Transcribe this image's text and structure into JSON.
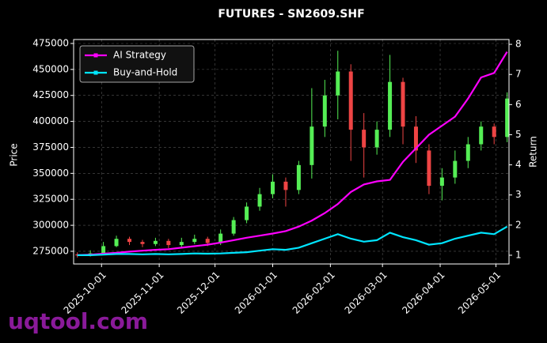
{
  "chart_data": {
    "type": "candlestick",
    "title": "FUTURES - SN2609.SHF",
    "ylabel": "Price",
    "y2label": "Return",
    "watermark": "uqtool.com",
    "x": [
      "2025-09-18",
      "2025-09-25",
      "2025-10-02",
      "2025-10-09",
      "2025-10-16",
      "2025-10-23",
      "2025-10-30",
      "2025-11-06",
      "2025-11-13",
      "2025-11-20",
      "2025-11-27",
      "2025-12-04",
      "2025-12-11",
      "2025-12-18",
      "2025-12-25",
      "2026-01-01",
      "2026-01-08",
      "2026-01-15",
      "2026-01-22",
      "2026-01-29",
      "2026-02-05",
      "2026-02-12",
      "2026-02-19",
      "2026-02-26",
      "2026-03-05",
      "2026-03-12",
      "2026-03-19",
      "2026-03-26",
      "2026-04-02",
      "2026-04-09",
      "2026-04-16",
      "2026-04-23",
      "2026-04-30",
      "2026-05-07"
    ],
    "open": [
      272000,
      271000,
      273000,
      280000,
      287000,
      284000,
      282000,
      285000,
      281000,
      284000,
      287000,
      283000,
      292000,
      305000,
      318000,
      330000,
      342000,
      334000,
      358000,
      395000,
      425000,
      448000,
      392000,
      375000,
      392000,
      438000,
      395000,
      372000,
      338000,
      346000,
      362000,
      378000,
      395000,
      385000
    ],
    "high": [
      274000,
      276000,
      284000,
      290000,
      289000,
      286000,
      288000,
      287000,
      288000,
      291000,
      289000,
      296000,
      308000,
      322000,
      336000,
      349000,
      346000,
      362000,
      432000,
      440000,
      468000,
      455000,
      408000,
      400000,
      464000,
      442000,
      405000,
      378000,
      355000,
      372000,
      385000,
      400000,
      398000,
      428000
    ],
    "low": [
      269000,
      270000,
      272000,
      279000,
      281000,
      279000,
      280000,
      278000,
      279000,
      282000,
      280000,
      281000,
      290000,
      302000,
      314000,
      326000,
      318000,
      330000,
      345000,
      385000,
      402000,
      362000,
      346000,
      368000,
      385000,
      378000,
      360000,
      330000,
      324000,
      340000,
      355000,
      372000,
      378000,
      380000
    ],
    "close": [
      271000,
      273000,
      280000,
      287000,
      284000,
      282000,
      285000,
      281000,
      284000,
      287000,
      283000,
      292000,
      305000,
      318000,
      330000,
      342000,
      334000,
      358000,
      395000,
      425000,
      448000,
      392000,
      375000,
      392000,
      438000,
      395000,
      372000,
      338000,
      346000,
      362000,
      378000,
      395000,
      385000,
      422000
    ],
    "up_color": "#55ee55",
    "down_color": "#ee4444",
    "series": [
      {
        "name": "AI Strategy",
        "color": "#ff00ff",
        "axis": "y2",
        "values": [
          1.0,
          1.02,
          1.05,
          1.08,
          1.12,
          1.15,
          1.18,
          1.2,
          1.25,
          1.3,
          1.35,
          1.42,
          1.5,
          1.58,
          1.65,
          1.72,
          1.8,
          1.95,
          2.15,
          2.4,
          2.7,
          3.1,
          3.35,
          3.45,
          3.5,
          4.1,
          4.55,
          5.0,
          5.3,
          5.6,
          6.2,
          6.9,
          7.05,
          7.75
        ]
      },
      {
        "name": "Buy-and-Hold",
        "color": "#00e5ff",
        "axis": "y2",
        "values": [
          1.0,
          1.0,
          1.02,
          1.04,
          1.04,
          1.03,
          1.04,
          1.03,
          1.04,
          1.06,
          1.05,
          1.06,
          1.08,
          1.1,
          1.15,
          1.2,
          1.18,
          1.25,
          1.4,
          1.55,
          1.7,
          1.55,
          1.45,
          1.5,
          1.75,
          1.6,
          1.5,
          1.35,
          1.4,
          1.55,
          1.65,
          1.75,
          1.7,
          1.95
        ]
      }
    ],
    "xlim": [
      "2025-09-16",
      "2026-05-08"
    ],
    "xticks": [
      "2025-10-01",
      "2025-11-01",
      "2025-12-01",
      "2026-01-01",
      "2026-02-01",
      "2026-03-01",
      "2026-04-01",
      "2026-05-01"
    ],
    "ylim": [
      262800,
      478800
    ],
    "yticks": [
      275000,
      300000,
      325000,
      350000,
      375000,
      400000,
      425000,
      450000,
      475000
    ],
    "y2lim": [
      0.71,
      8.16
    ],
    "y2ticks": [
      1,
      2,
      3,
      4,
      5,
      6,
      7,
      8
    ],
    "grid": true,
    "legend": "upper left"
  }
}
